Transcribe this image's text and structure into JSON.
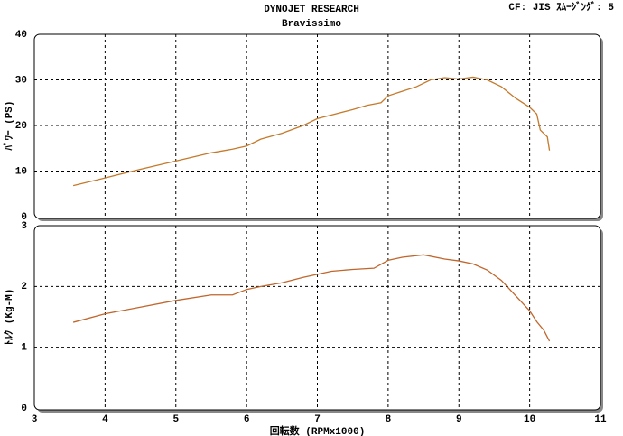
{
  "chart_data": [
    {
      "type": "line",
      "title": "DYNOJET  RESEARCH",
      "subtitle": "Bravissimo",
      "annotation": "CF: JIS  ｽﾑｰｼﾞﾝｸﾞ: 5",
      "y_label": "ﾊﾟﾜｰ (PS)",
      "color": "#c47a2c",
      "x": [
        3.55,
        4.0,
        4.5,
        5.0,
        5.5,
        5.8,
        6.0,
        6.2,
        6.5,
        6.8,
        7.0,
        7.2,
        7.5,
        7.7,
        7.9,
        8.0,
        8.2,
        8.4,
        8.6,
        8.8,
        9.0,
        9.2,
        9.4,
        9.6,
        9.8,
        10.0,
        10.1,
        10.15,
        10.25,
        10.28
      ],
      "values": [
        6.8,
        8.5,
        10.4,
        12.2,
        14.0,
        14.8,
        15.5,
        17.0,
        18.3,
        20.0,
        21.5,
        22.3,
        23.5,
        24.4,
        25.0,
        26.5,
        27.5,
        28.5,
        30.0,
        30.5,
        30.2,
        30.6,
        30.0,
        28.5,
        26.0,
        24.0,
        22.5,
        19.0,
        17.5,
        14.5
      ],
      "xlim": [
        3,
        11
      ],
      "xticks": [
        3,
        4,
        5,
        6,
        7,
        8,
        9,
        10,
        11
      ],
      "ylim": [
        0,
        40
      ],
      "yticks": [
        0,
        10,
        20,
        30,
        40
      ],
      "grid": true
    },
    {
      "type": "line",
      "y_label": "ﾄﾙｸ (Kg-M)",
      "x_label": "回転数 (RPMx1000)",
      "color": "#c0662c",
      "x": [
        3.55,
        4.0,
        4.5,
        5.0,
        5.5,
        5.8,
        6.0,
        6.2,
        6.5,
        6.8,
        7.0,
        7.2,
        7.5,
        7.8,
        8.0,
        8.2,
        8.5,
        8.8,
        9.0,
        9.2,
        9.4,
        9.6,
        9.8,
        10.0,
        10.1,
        10.2,
        10.28
      ],
      "values": [
        1.41,
        1.55,
        1.66,
        1.77,
        1.86,
        1.86,
        1.95,
        2.0,
        2.06,
        2.15,
        2.2,
        2.25,
        2.28,
        2.3,
        2.43,
        2.48,
        2.52,
        2.45,
        2.42,
        2.37,
        2.27,
        2.1,
        1.85,
        1.6,
        1.42,
        1.28,
        1.1
      ],
      "xlim": [
        3,
        11
      ],
      "xticks": [
        3,
        4,
        5,
        6,
        7,
        8,
        9,
        10,
        11
      ],
      "ylim": [
        0,
        3
      ],
      "yticks": [
        0,
        1,
        2,
        3
      ],
      "grid": true
    }
  ]
}
